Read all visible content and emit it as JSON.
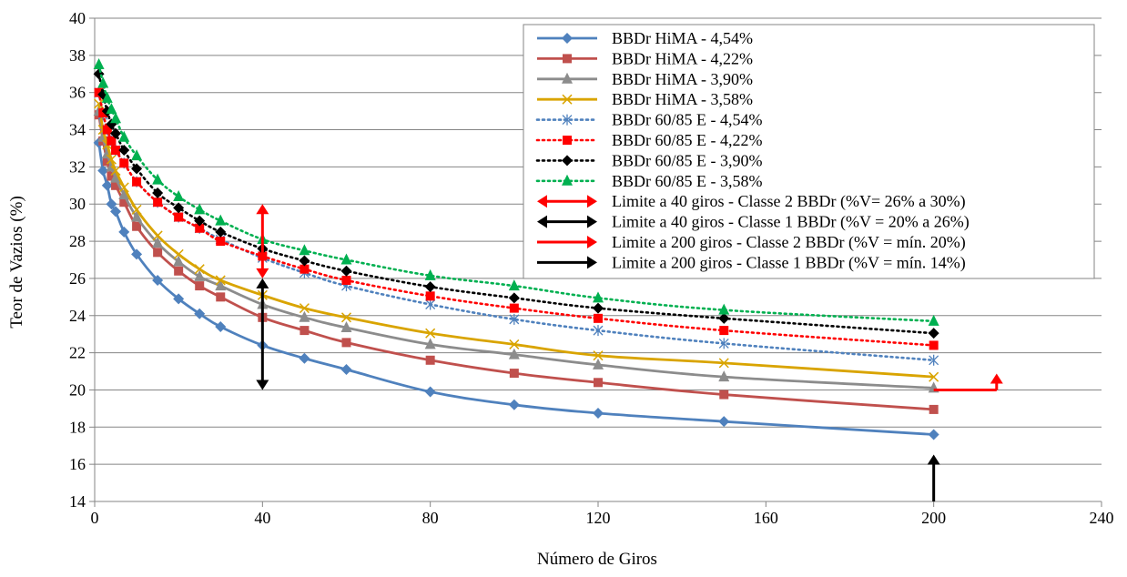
{
  "chart_data": {
    "type": "line",
    "title": "",
    "xlabel": "Número de Giros",
    "ylabel": "Teor de Vazios (%)",
    "xlim": [
      0,
      240
    ],
    "ylim": [
      14,
      40
    ],
    "xticks": [
      0,
      40,
      80,
      120,
      160,
      200,
      240
    ],
    "yticks": [
      14,
      16,
      18,
      20,
      22,
      24,
      26,
      28,
      30,
      32,
      34,
      36,
      38,
      40
    ],
    "x_tick_labels": [
      "0",
      "40",
      "80",
      "120",
      "160",
      "200",
      "240"
    ],
    "y_tick_labels": [
      "14",
      "16",
      "18",
      "20",
      "22",
      "24",
      "26",
      "28",
      "30",
      "32",
      "34",
      "36",
      "38",
      "40"
    ],
    "grid": "horizontal",
    "legend_position": "top-right",
    "x": [
      1,
      2,
      3,
      4,
      5,
      7,
      10,
      15,
      20,
      25,
      30,
      40,
      50,
      60,
      80,
      100,
      120,
      150,
      200
    ],
    "series": [
      {
        "name": "BBDr HiMA - 4,54%",
        "color": "#4F81BD",
        "marker": "diamond",
        "dash": "solid",
        "values": [
          33.3,
          31.8,
          31.0,
          30.0,
          29.6,
          28.5,
          27.3,
          25.9,
          24.9,
          24.1,
          23.4,
          22.4,
          21.7,
          21.1,
          19.9,
          19.2,
          18.75,
          18.3,
          17.6
        ]
      },
      {
        "name": "BBDr HiMA - 4,22%",
        "color": "#C0504D",
        "marker": "square",
        "dash": "solid",
        "values": [
          34.8,
          33.4,
          32.3,
          31.5,
          31.0,
          30.1,
          28.8,
          27.4,
          26.4,
          25.6,
          25.0,
          23.9,
          23.2,
          22.55,
          21.6,
          20.9,
          20.4,
          19.75,
          18.95
        ]
      },
      {
        "name": "BBDr HiMA - 3,90%",
        "color": "#8C8C8C",
        "marker": "triangle",
        "dash": "solid",
        "values": [
          35.0,
          33.6,
          32.7,
          32.0,
          31.4,
          30.5,
          29.3,
          27.9,
          26.9,
          26.1,
          25.6,
          24.6,
          23.9,
          23.35,
          22.45,
          21.9,
          21.35,
          20.7,
          20.1
        ]
      },
      {
        "name": "BBDr HiMA - 3,58%",
        "color": "#D9A400",
        "marker": "x",
        "dash": "solid",
        "values": [
          35.4,
          34.0,
          33.2,
          32.4,
          31.8,
          30.9,
          29.7,
          28.3,
          27.3,
          26.5,
          25.9,
          25.1,
          24.4,
          23.9,
          23.05,
          22.45,
          21.85,
          21.45,
          20.7
        ]
      },
      {
        "name": "BBDr 60/85 E - 4,54%",
        "color": "#4F81BD",
        "marker": "asterisk",
        "dash": "dotted",
        "values": [
          36.0,
          34.8,
          34.0,
          33.4,
          32.9,
          32.2,
          31.2,
          30.1,
          29.3,
          28.7,
          28.1,
          27.1,
          26.3,
          25.6,
          24.6,
          23.8,
          23.2,
          22.5,
          21.6
        ]
      },
      {
        "name": "BBDr 60/85 E - 4,22%",
        "color": "#FF0000",
        "marker": "square",
        "dash": "dotted",
        "values": [
          36.0,
          34.9,
          34.0,
          33.4,
          32.9,
          32.2,
          31.2,
          30.1,
          29.3,
          28.7,
          28.0,
          27.2,
          26.5,
          25.9,
          25.05,
          24.4,
          23.85,
          23.2,
          22.4
        ]
      },
      {
        "name": "BBDr 60/85 E - 3,90%",
        "color": "#000000",
        "marker": "diamond",
        "dash": "dotted",
        "values": [
          37.0,
          35.9,
          35.0,
          34.3,
          33.8,
          32.9,
          31.9,
          30.6,
          29.8,
          29.1,
          28.5,
          27.6,
          26.95,
          26.4,
          25.55,
          24.95,
          24.4,
          23.85,
          23.05
        ]
      },
      {
        "name": "BBDr 60/85 E - 3,58%",
        "color": "#00B050",
        "marker": "triangle",
        "dash": "dotted",
        "values": [
          37.5,
          36.5,
          35.7,
          35.1,
          34.6,
          33.6,
          32.6,
          31.3,
          30.4,
          29.7,
          29.1,
          28.1,
          27.5,
          27.0,
          26.15,
          25.6,
          24.95,
          24.3,
          23.7
        ]
      }
    ],
    "annotations": [
      {
        "name": "Limite a 40 giros - Classe 2 BBDr (%V= 26% a 30%)",
        "type": "double-arrow",
        "color": "#FF0000",
        "x": 40,
        "y_from": 26,
        "y_to": 30
      },
      {
        "name": "Limite a 40 giros - Classe 1 BBDr (%V = 20% a 26%)",
        "type": "double-arrow",
        "color": "#000000",
        "x": 40,
        "y_from": 20,
        "y_to": 26
      },
      {
        "name": "Limite a 200 giros - Classe 2 BBDr (%V = mín. 20%)",
        "type": "arrow",
        "color": "#FF0000",
        "x": 200,
        "y": 20
      },
      {
        "name": "Limite a 200 giros - Classe 1 BBDr (%V = mín. 14%)",
        "type": "arrow",
        "color": "#000000",
        "x": 200,
        "y": 14
      }
    ]
  }
}
